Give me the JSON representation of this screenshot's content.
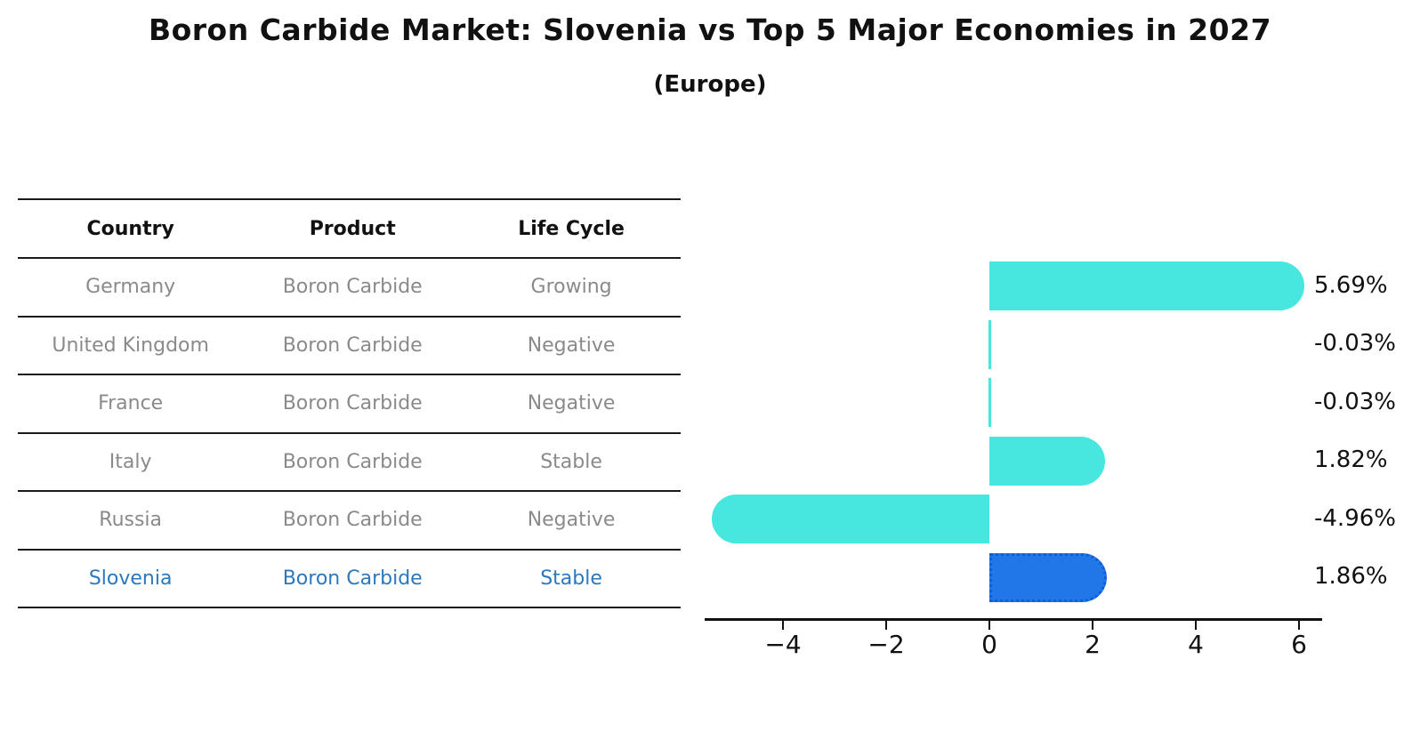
{
  "title": "Boron Carbide Market: Slovenia vs Top 5 Major Economies in 2027",
  "subtitle": "(Europe)",
  "table": {
    "headers": [
      "Country",
      "Product",
      "Life Cycle"
    ],
    "rows": [
      {
        "country": "Germany",
        "product": "Boron Carbide",
        "life_cycle": "Growing",
        "highlight": false
      },
      {
        "country": "United Kingdom",
        "product": "Boron Carbide",
        "life_cycle": "Negative",
        "highlight": false
      },
      {
        "country": "France",
        "product": "Boron Carbide",
        "life_cycle": "Negative",
        "highlight": false
      },
      {
        "country": "Italy",
        "product": "Boron Carbide",
        "life_cycle": "Stable",
        "highlight": false
      },
      {
        "country": "Russia",
        "product": "Boron Carbide",
        "life_cycle": "Negative",
        "highlight": false
      },
      {
        "country": "Slovenia",
        "product": "Boron Carbide",
        "life_cycle": "Stable",
        "highlight": true
      }
    ]
  },
  "chart_data": {
    "type": "bar",
    "orientation": "horizontal",
    "title": "Boron Carbide Market: Slovenia vs Top 5 Major Economies in 2027 (Europe)",
    "categories": [
      "Germany",
      "United Kingdom",
      "France",
      "Italy",
      "Russia",
      "Slovenia"
    ],
    "values": [
      5.69,
      -0.03,
      -0.03,
      1.82,
      -4.96,
      1.86
    ],
    "value_labels": [
      "5.69%",
      "-0.03%",
      "-0.03%",
      "1.82%",
      "-4.96%",
      "1.86%"
    ],
    "unit": "percent",
    "x_tick_values": [
      -4,
      -2,
      0,
      2,
      4,
      6
    ],
    "x_tick_labels": [
      "−4",
      "−2",
      "0",
      "2",
      "4",
      "6"
    ],
    "xlim": [
      -5.5,
      6.4
    ],
    "grid": false,
    "legend": "none",
    "highlight_index": 5,
    "colors": {
      "bar": "#47E6DF",
      "highlight_bar": "#2176E8",
      "highlight_border": "#0E5ED6",
      "axis": "#111111",
      "row_text": "#8a8a8a",
      "highlight_text": "#2B78BE",
      "header_text": "#111111"
    }
  }
}
